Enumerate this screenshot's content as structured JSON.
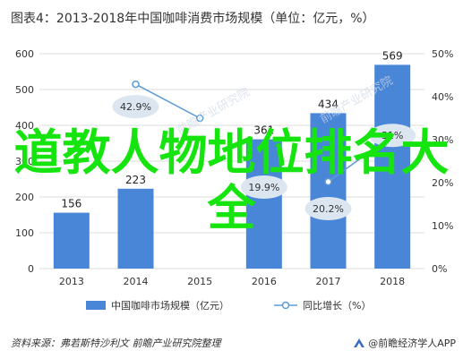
{
  "title": "图表4：2013-2018年中国咖啡消费市场规模（单位：亿元，%）",
  "footer": {
    "source": "资料来源：弗若斯特沙利文 前瞻产业研究院整理",
    "brand": "@前瞻经济学人APP",
    "logo_icon": "qianzhan-logo-icon"
  },
  "overlay_text": "道教人物地位排名大全",
  "watermark_text": "前瞻产业研究院",
  "colors": {
    "bar": "#4a86d8",
    "line": "#5b9bd5",
    "bubble": "#dce6f0",
    "overlay": "#16e40e",
    "grid": "#dddddd"
  },
  "chart_data": {
    "type": "bar",
    "categories": [
      "2013",
      "2014",
      "2015",
      "2016",
      "2017",
      "2018"
    ],
    "series": [
      {
        "name": "中国咖啡市场规模（亿元）",
        "type": "bar",
        "axis": "left",
        "values": [
          156,
          223,
          null,
          361,
          434,
          569
        ],
        "labels": [
          "156",
          "223",
          "",
          "361",
          "434",
          "569"
        ]
      },
      {
        "name": "同比增长（%）",
        "type": "line",
        "axis": "right",
        "values": [
          null,
          42.9,
          35,
          null,
          20.2,
          31
        ],
        "labels": [
          "",
          "42.9%",
          "",
          "19.9%",
          "20.2%",
          "31%"
        ]
      }
    ],
    "y_left": {
      "min": 0,
      "max": 600,
      "ticks": [
        0,
        100,
        200,
        300,
        400,
        500,
        600
      ]
    },
    "y_right": {
      "min": 0,
      "max": 50,
      "ticks": [
        "0%",
        "10%",
        "20%",
        "30%",
        "40%",
        "50%"
      ]
    },
    "legend_position": "bottom",
    "grid": true
  }
}
